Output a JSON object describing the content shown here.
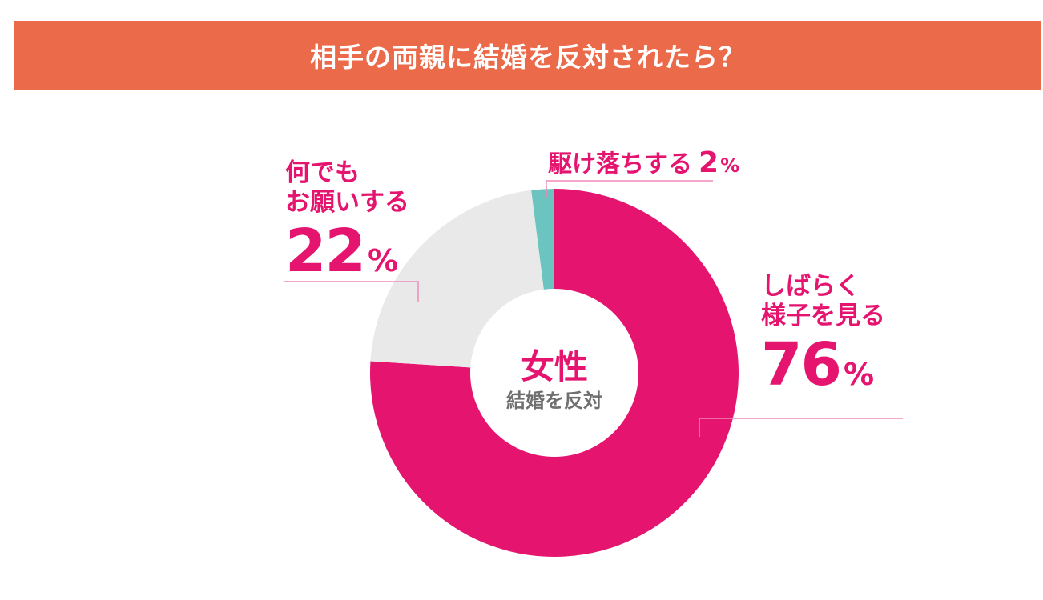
{
  "title": "相手の両親に結婚を反対されたら？",
  "center": {
    "main": "女性",
    "sub": "結婚を反対"
  },
  "colors": {
    "title_bg": "#eb6a4a",
    "accent": "#e4146f",
    "gray": "#e9e9e9",
    "teal": "#6cc4c0",
    "leader": "#f08ab8"
  },
  "chart_data": {
    "type": "pie",
    "donut": true,
    "title": "相手の両親に結婚を反対されたら？",
    "slices": [
      {
        "label": "しばらく様子を見る",
        "value": 76,
        "color": "#e4146f"
      },
      {
        "label": "何でもお願いする",
        "value": 22,
        "color": "#e9e9e9"
      },
      {
        "label": "駆け落ちする",
        "value": 2,
        "color": "#6cc4c0"
      }
    ]
  },
  "labels": {
    "wait": {
      "line1": "しばらく",
      "line2": "様子を見る",
      "pct": "76",
      "unit": "%"
    },
    "ask": {
      "line1": "何でも",
      "line2": "お願いする",
      "pct": "22",
      "unit": "%"
    },
    "elope": {
      "name": "駆け落ちする",
      "pct": "2",
      "unit": "%"
    }
  }
}
